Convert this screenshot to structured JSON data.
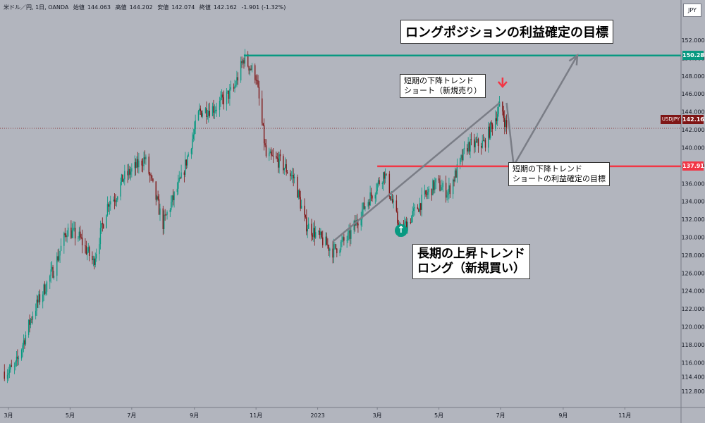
{
  "header": {
    "symbol": "米ドル／円, 1日, OANDA",
    "open_label": "始値",
    "open": "144.063",
    "high_label": "高値",
    "high": "144.202",
    "low_label": "安値",
    "low": "142.074",
    "close_label": "終値",
    "close": "142.162",
    "change": "-1.901 (-1.32%)"
  },
  "currency_button": "JPY",
  "symbol_tag": "USDJPY",
  "annotations": {
    "title": "ロングポジションの利益確定の目標",
    "short_entry": [
      "短期の下降トレンド",
      "ショート（新規売り）"
    ],
    "short_exit": [
      "短期の下降トレンド",
      "ショートの利益確定の目標"
    ],
    "long_entry": [
      "長期の上昇トレンド",
      "ロング（新規買い）"
    ]
  },
  "colors": {
    "background": "#b2b5be",
    "up": "#089981",
    "down": "#7f1515",
    "target_line": "#089981",
    "support_line": "#f23645",
    "arrow": "#7a7d86",
    "short_marker": "#f23645",
    "long_marker": "#089981"
  },
  "chart_data": {
    "type": "candlestick",
    "symbol": "USDJPY",
    "ylim": [
      111,
      153.5
    ],
    "y_ticks": [
      "112.800",
      "114.400",
      "116.000",
      "118.000",
      "120.000",
      "122.000",
      "124.000",
      "126.000",
      "128.000",
      "130.000",
      "132.000",
      "134.000",
      "136.000",
      "138.000",
      "140.000",
      "142.000",
      "144.000",
      "146.000",
      "148.000",
      "150.000",
      "152.000"
    ],
    "x_ticks": [
      "3月",
      "5月",
      "7月",
      "9月",
      "11月",
      "2023",
      "3月",
      "5月",
      "7月",
      "9月",
      "11月"
    ],
    "current_price": 142.162,
    "levels": [
      {
        "value": 150.288,
        "label": "150.288",
        "color": "#089981"
      },
      {
        "value": 137.915,
        "label": "137.915",
        "color": "#f23645"
      }
    ],
    "close_path": [
      [
        "2022-02-25",
        115.0
      ],
      [
        "2022-03-07",
        115.3
      ],
      [
        "2022-03-25",
        121.5
      ],
      [
        "2022-04-15",
        126.5
      ],
      [
        "2022-04-28",
        130.8
      ],
      [
        "2022-05-10",
        130.0
      ],
      [
        "2022-05-24",
        127.2
      ],
      [
        "2022-06-08",
        134.0
      ],
      [
        "2022-06-15",
        134.5
      ],
      [
        "2022-06-22",
        136.5
      ],
      [
        "2022-07-14",
        138.8
      ],
      [
        "2022-08-01",
        131.5
      ],
      [
        "2022-08-20",
        136.8
      ],
      [
        "2022-09-06",
        144.0
      ],
      [
        "2022-09-22",
        144.5
      ],
      [
        "2022-10-10",
        146.5
      ],
      [
        "2022-10-20",
        150.0
      ],
      [
        "2022-11-01",
        148.0
      ],
      [
        "2022-11-11",
        139.0
      ],
      [
        "2022-11-24",
        138.5
      ],
      [
        "2022-12-09",
        136.5
      ],
      [
        "2022-12-20",
        131.5
      ],
      [
        "2023-01-16",
        128.5
      ],
      [
        "2023-02-01",
        130.0
      ],
      [
        "2023-02-14",
        133.0
      ],
      [
        "2023-03-08",
        137.2
      ],
      [
        "2023-03-24",
        130.5
      ],
      [
        "2023-04-17",
        134.5
      ],
      [
        "2023-04-28",
        136.0
      ],
      [
        "2023-05-10",
        135.0
      ],
      [
        "2023-05-29",
        140.2
      ],
      [
        "2023-06-15",
        140.5
      ],
      [
        "2023-06-30",
        144.5
      ],
      [
        "2023-07-03",
        144.0
      ],
      [
        "2023-07-07",
        142.2
      ]
    ],
    "projection": [
      [
        "2023-07-07",
        145.0
      ],
      [
        "2023-07-14",
        138.0
      ],
      [
        "2023-09-15",
        150.3
      ]
    ]
  }
}
